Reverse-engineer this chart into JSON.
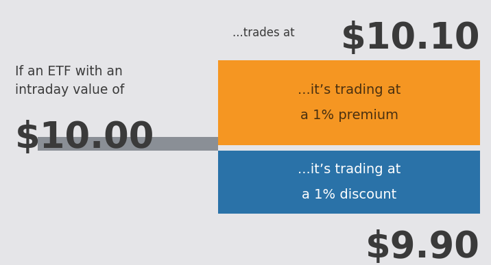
{
  "background_color": "#e5e5e8",
  "left_text_line1": "If an ETF with an",
  "left_text_line2": "intraday value of",
  "left_value": "$10.00",
  "trades_at_label": "...trades at",
  "premium_price": "$10.10",
  "discount_price": "$9.90",
  "premium_box_color": "#f59622",
  "discount_box_color": "#2a72a8",
  "premium_text_line1": "...it’s trading at",
  "premium_text_line2": "a 1% premium",
  "discount_text_line1": "...it’s trading at",
  "discount_text_line2": "a 1% discount",
  "connector_color": "#8a8f96",
  "text_color_dark": "#3a3a3a",
  "text_color_white": "#ffffff",
  "premium_text_color": "#4a3010"
}
